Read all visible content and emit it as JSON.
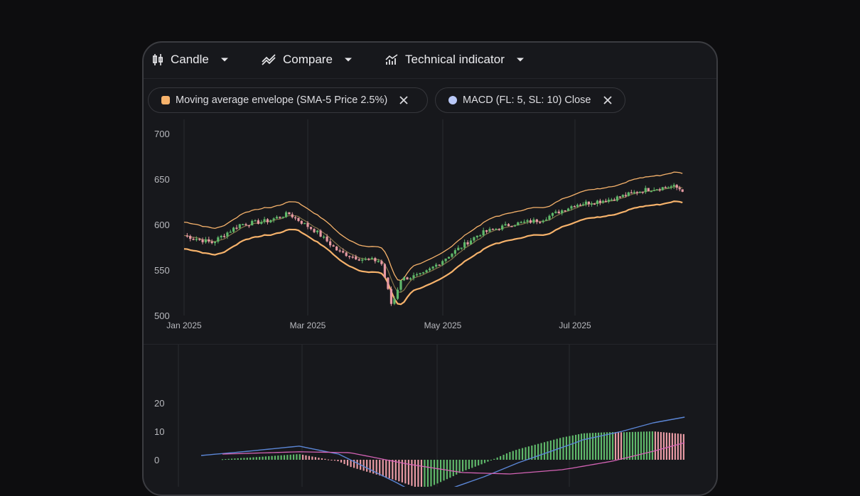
{
  "toolbar": {
    "candle_label": "Candle",
    "compare_label": "Compare",
    "indicator_label": "Technical indicator"
  },
  "chips": [
    {
      "label": "Moving average envelope (SMA-5 Price 2.5%)",
      "color": "#f6b26b"
    },
    {
      "label": "MACD (FL: 5, SL: 10) Close",
      "color": "#b9c8f7"
    }
  ],
  "colors": {
    "up": "#5fb86a",
    "down": "#e79aa3",
    "envelope": "#f6b26b",
    "macd_line": "#5b86d6",
    "signal_line": "#d463b5"
  },
  "chart_data": [
    {
      "type": "candlestick",
      "y_ticks": [
        "700",
        "650",
        "600",
        "550",
        "500"
      ],
      "ylim": [
        500,
        700
      ],
      "x_ticks": [
        "Jan 2025",
        "Mar 2025",
        "May 2025",
        "Jul 2025"
      ],
      "close_series": [
        {
          "date": "2025-01-02",
          "value": 588
        },
        {
          "date": "2025-01-15",
          "value": 580
        },
        {
          "date": "2025-01-28",
          "value": 600
        },
        {
          "date": "2025-02-10",
          "value": 604
        },
        {
          "date": "2025-02-20",
          "value": 612
        },
        {
          "date": "2025-03-05",
          "value": 592
        },
        {
          "date": "2025-03-15",
          "value": 570
        },
        {
          "date": "2025-03-25",
          "value": 562
        },
        {
          "date": "2025-04-03",
          "value": 560
        },
        {
          "date": "2025-04-08",
          "value": 510
        },
        {
          "date": "2025-04-12",
          "value": 540
        },
        {
          "date": "2025-04-22",
          "value": 545
        },
        {
          "date": "2025-05-05",
          "value": 568
        },
        {
          "date": "2025-05-18",
          "value": 590
        },
        {
          "date": "2025-06-01",
          "value": 600
        },
        {
          "date": "2025-06-15",
          "value": 605
        },
        {
          "date": "2025-07-01",
          "value": 622
        },
        {
          "date": "2025-07-20",
          "value": 628
        },
        {
          "date": "2025-08-05",
          "value": 638
        },
        {
          "date": "2025-08-20",
          "value": 642
        },
        {
          "date": "2025-08-26",
          "value": 637
        }
      ],
      "envelope_pct": 2.5
    },
    {
      "type": "bar",
      "name": "MACD",
      "y_ticks": [
        "20",
        "10",
        "0"
      ],
      "ylim": [
        -15,
        22
      ],
      "macd_line": [
        {
          "date": "2025-01-10",
          "value": 1.5
        },
        {
          "date": "2025-02-01",
          "value": 3.0
        },
        {
          "date": "2025-02-25",
          "value": 4.8
        },
        {
          "date": "2025-03-15",
          "value": 2.0
        },
        {
          "date": "2025-03-28",
          "value": -3.0
        },
        {
          "date": "2025-04-10",
          "value": -8.0
        },
        {
          "date": "2025-04-22",
          "value": -13.0
        },
        {
          "date": "2025-05-05",
          "value": -10.0
        },
        {
          "date": "2025-05-20",
          "value": -6.0
        },
        {
          "date": "2025-06-05",
          "value": -1.0
        },
        {
          "date": "2025-06-20",
          "value": 3.0
        },
        {
          "date": "2025-07-05",
          "value": 7.0
        },
        {
          "date": "2025-07-25",
          "value": 10.0
        },
        {
          "date": "2025-08-10",
          "value": 13.0
        },
        {
          "date": "2025-08-26",
          "value": 15.0
        }
      ],
      "signal_line": [
        {
          "date": "2025-01-20",
          "value": 2.0
        },
        {
          "date": "2025-02-25",
          "value": 2.8
        },
        {
          "date": "2025-03-20",
          "value": 2.5
        },
        {
          "date": "2025-04-15",
          "value": -1.5
        },
        {
          "date": "2025-05-10",
          "value": -4.5
        },
        {
          "date": "2025-06-01",
          "value": -5.0
        },
        {
          "date": "2025-06-25",
          "value": -3.5
        },
        {
          "date": "2025-07-20",
          "value": -0.5
        },
        {
          "date": "2025-08-10",
          "value": 3.0
        },
        {
          "date": "2025-08-26",
          "value": 6.0
        }
      ]
    }
  ]
}
